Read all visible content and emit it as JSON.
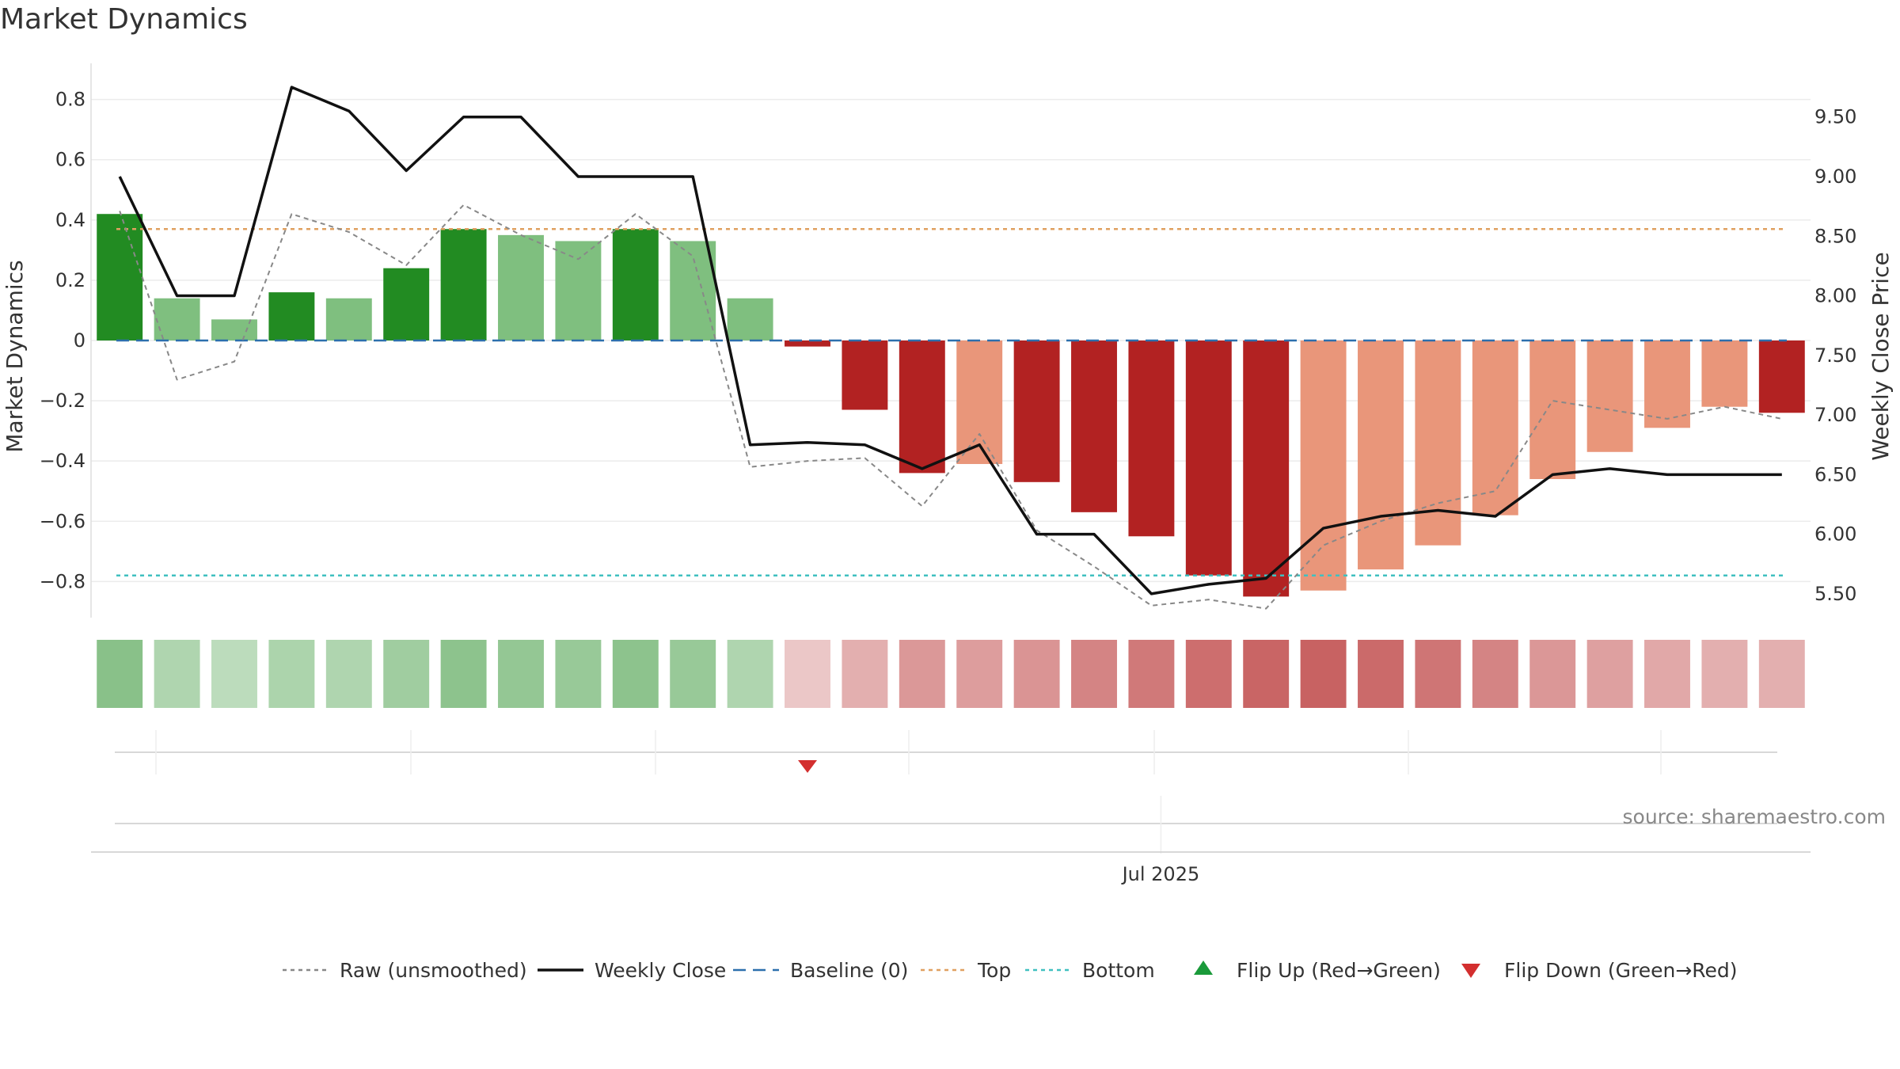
{
  "title": "Market Dynamics",
  "source": "source: sharemaestro.com",
  "chart_data": {
    "type": "bar",
    "title": "Market Dynamics",
    "ylabel_left": "Market Dynamics",
    "ylabel_right": "Weekly Close Price",
    "ylim_left": [
      -0.92,
      0.92
    ],
    "ylim_right": [
      5.3,
      9.95
    ],
    "yticks_left": [
      "0.8",
      "0.6",
      "0.4",
      "0.2",
      "0",
      "−0.2",
      "−0.4",
      "−0.6",
      "−0.8"
    ],
    "yticks_left_values": [
      0.8,
      0.6,
      0.4,
      0.2,
      0,
      -0.2,
      -0.4,
      -0.6,
      -0.8
    ],
    "yticks_right": [
      "9.50",
      "9.00",
      "8.50",
      "8.00",
      "7.50",
      "7.00",
      "6.50",
      "6.00",
      "5.50"
    ],
    "yticks_right_values": [
      9.5,
      9.0,
      8.5,
      8.0,
      7.5,
      7.0,
      6.5,
      6.0,
      5.5
    ],
    "x_label": "Jul 2025",
    "x_label_index": 18,
    "bars": [
      {
        "value": 0.42,
        "strength": "strong"
      },
      {
        "value": 0.14,
        "strength": "weak"
      },
      {
        "value": 0.07,
        "strength": "weak"
      },
      {
        "value": 0.16,
        "strength": "strong"
      },
      {
        "value": 0.14,
        "strength": "weak"
      },
      {
        "value": 0.24,
        "strength": "strong"
      },
      {
        "value": 0.37,
        "strength": "strong"
      },
      {
        "value": 0.35,
        "strength": "weak"
      },
      {
        "value": 0.33,
        "strength": "weak"
      },
      {
        "value": 0.37,
        "strength": "strong"
      },
      {
        "value": 0.33,
        "strength": "weak"
      },
      {
        "value": 0.14,
        "strength": "weak"
      },
      {
        "value": -0.02,
        "strength": "strong"
      },
      {
        "value": -0.23,
        "strength": "strong"
      },
      {
        "value": -0.44,
        "strength": "strong"
      },
      {
        "value": -0.41,
        "strength": "weak"
      },
      {
        "value": -0.47,
        "strength": "strong"
      },
      {
        "value": -0.57,
        "strength": "strong"
      },
      {
        "value": -0.65,
        "strength": "strong"
      },
      {
        "value": -0.78,
        "strength": "strong"
      },
      {
        "value": -0.85,
        "strength": "strong"
      },
      {
        "value": -0.83,
        "strength": "weak"
      },
      {
        "value": -0.76,
        "strength": "weak"
      },
      {
        "value": -0.68,
        "strength": "weak"
      },
      {
        "value": -0.58,
        "strength": "weak"
      },
      {
        "value": -0.46,
        "strength": "weak"
      },
      {
        "value": -0.37,
        "strength": "weak"
      },
      {
        "value": -0.29,
        "strength": "weak"
      },
      {
        "value": -0.22,
        "strength": "weak"
      },
      {
        "value": -0.24,
        "strength": "strong"
      }
    ],
    "series": [
      {
        "name": "Raw (unsmoothed)",
        "axis": "left",
        "color": "#888888",
        "values": [
          0.43,
          -0.13,
          -0.07,
          0.42,
          0.36,
          0.25,
          0.45,
          0.35,
          0.27,
          0.42,
          0.28,
          -0.42,
          -0.4,
          -0.39,
          -0.55,
          -0.31,
          -0.63,
          -0.75,
          -0.88,
          -0.86,
          -0.89,
          -0.68,
          -0.6,
          -0.54,
          -0.5,
          -0.2,
          -0.23,
          -0.26,
          -0.22,
          -0.26
        ]
      },
      {
        "name": "Weekly Close",
        "axis": "right",
        "color": "#111111",
        "values": [
          9.0,
          8.0,
          8.0,
          9.75,
          9.55,
          9.05,
          9.5,
          9.5,
          9.0,
          9.0,
          9.0,
          6.75,
          6.77,
          6.75,
          6.55,
          6.75,
          6.0,
          6.0,
          5.5,
          5.58,
          5.63,
          6.05,
          6.15,
          6.2,
          6.15,
          6.5,
          6.55,
          6.5,
          6.5,
          6.5
        ]
      },
      {
        "name": "Baseline (0)",
        "axis": "left",
        "color": "#2c6fad",
        "value": 0
      },
      {
        "name": "Top",
        "axis": "left",
        "color": "#e0a060",
        "value": 0.37
      },
      {
        "name": "Bottom",
        "axis": "left",
        "color": "#40c0c0",
        "value": -0.78
      }
    ],
    "heat_strip": [
      0.55,
      0.3,
      0.22,
      0.32,
      0.3,
      0.4,
      0.52,
      0.48,
      0.45,
      0.52,
      0.45,
      0.3,
      -0.15,
      -0.3,
      -0.45,
      -0.42,
      -0.48,
      -0.58,
      -0.65,
      -0.72,
      -0.78,
      -0.8,
      -0.75,
      -0.68,
      -0.58,
      -0.46,
      -0.4,
      -0.35,
      -0.3,
      -0.3
    ],
    "flip_down_index": 12,
    "flip_up_indices": [],
    "colors": {
      "strong_green": "#228b22",
      "weak_green": "#7fbf7f",
      "strong_red": "#b22222",
      "weak_red": "#e9967a",
      "flip_up": "#1a9a3a",
      "flip_down": "#d32f2f"
    },
    "legend": [
      {
        "label": "Raw (unsmoothed)",
        "kind": "dotted",
        "color": "#888888"
      },
      {
        "label": "Weekly Close",
        "kind": "solid",
        "color": "#111111"
      },
      {
        "label": "Baseline (0)",
        "kind": "dashed",
        "color": "#2c6fad"
      },
      {
        "label": "Top",
        "kind": "dotted",
        "color": "#e0a060"
      },
      {
        "label": "Bottom",
        "kind": "dotted",
        "color": "#40c0c0"
      },
      {
        "label": "Flip Up (Red→Green)",
        "kind": "triangle-up",
        "color": "#1a9a3a"
      },
      {
        "label": "Flip Down (Green→Red)",
        "kind": "triangle-down",
        "color": "#d32f2f"
      }
    ],
    "legend_position": "bottom",
    "grid": true
  }
}
